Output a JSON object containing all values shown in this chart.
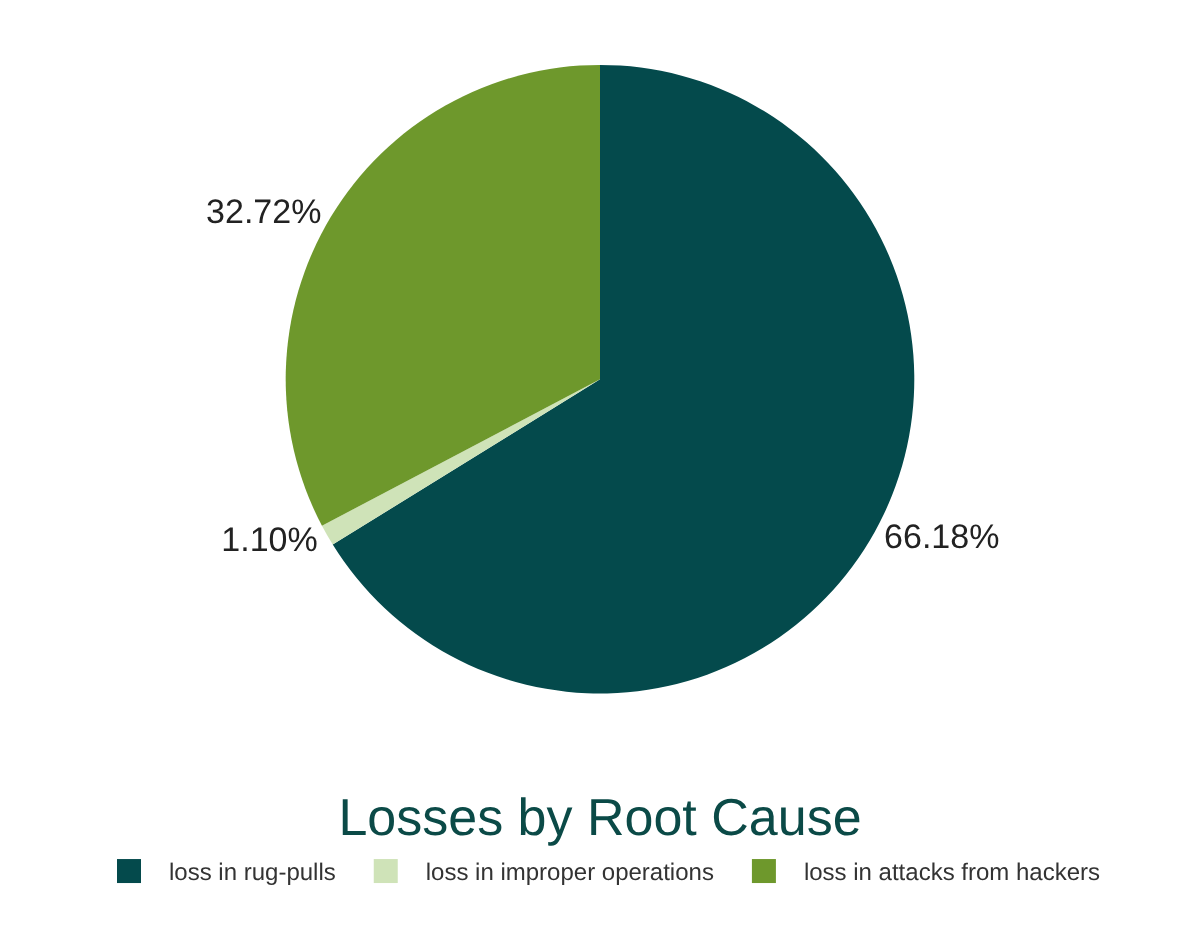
{
  "chart_data": {
    "type": "pie",
    "title": "Losses by Root Cause",
    "categories": [
      "loss in rug-pulls",
      "loss in improper operations",
      "loss in attacks from hackers"
    ],
    "values": [
      66.18,
      1.1,
      32.72
    ],
    "value_labels": [
      "66.18%",
      "1.10%",
      "32.72%"
    ],
    "colors": [
      "#044a4c",
      "#cfe3b8",
      "#6e982c"
    ],
    "legend": "bottom"
  }
}
